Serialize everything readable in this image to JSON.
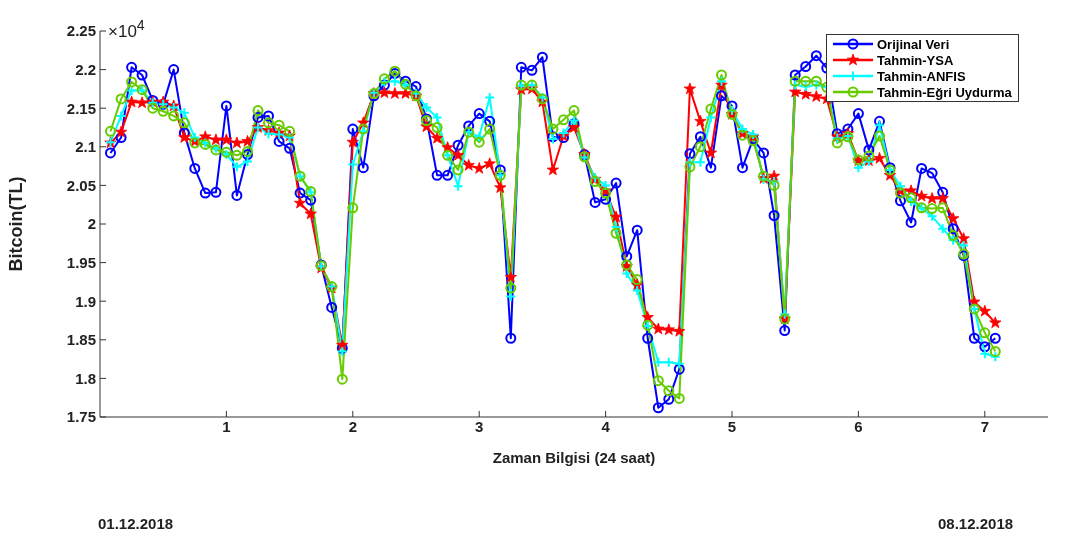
{
  "chart_data": {
    "type": "line",
    "xlabel": "Zaman Bilgisi (24 saat)",
    "ylabel": "Bitcoin(TL)",
    "annotations": [
      "×10$^{4}$",
      "01.12.2018",
      "08.12.2018"
    ],
    "x": [
      0.083,
      0.167,
      0.25,
      0.333,
      0.417,
      0.5,
      0.583,
      0.667,
      0.75,
      0.833,
      0.917,
      1,
      1.083,
      1.167,
      1.25,
      1.333,
      1.417,
      1.5,
      1.583,
      1.667,
      1.75,
      1.833,
      1.917,
      2,
      2.083,
      2.167,
      2.25,
      2.333,
      2.417,
      2.5,
      2.583,
      2.667,
      2.75,
      2.833,
      2.917,
      3,
      3.083,
      3.167,
      3.25,
      3.333,
      3.417,
      3.5,
      3.583,
      3.667,
      3.75,
      3.833,
      3.917,
      4,
      4.083,
      4.167,
      4.25,
      4.333,
      4.417,
      4.5,
      4.583,
      4.667,
      4.75,
      4.833,
      4.917,
      5,
      5.083,
      5.167,
      5.25,
      5.333,
      5.417,
      5.5,
      5.583,
      5.667,
      5.75,
      5.833,
      5.917,
      6,
      6.083,
      6.167,
      6.25,
      6.333,
      6.417,
      6.5,
      6.583,
      6.667,
      6.75,
      6.833,
      6.917,
      7,
      7.083
    ],
    "series": [
      {
        "name": "Orijinal Veri",
        "color": "#0000ff",
        "marker": "circle",
        "values": [
          2.092,
          2.112,
          2.203,
          2.193,
          2.16,
          2.155,
          2.2,
          2.118,
          2.072,
          2.04,
          2.041,
          2.153,
          2.037,
          2.09,
          2.138,
          2.14,
          2.107,
          2.098,
          2.04,
          2.031,
          1.947,
          1.892,
          1.839,
          2.123,
          2.073,
          2.166,
          2.18,
          2.195,
          2.185,
          2.178,
          2.136,
          2.063,
          2.063,
          2.102,
          2.127,
          2.143,
          2.133,
          2.07,
          1.852,
          2.203,
          2.199,
          2.216,
          2.113,
          2.112,
          2.13,
          2.09,
          2.028,
          2.032,
          2.053,
          1.958,
          1.992,
          1.852,
          1.762,
          1.773,
          1.812,
          2.091,
          2.113,
          2.073,
          2.166,
          2.153,
          2.073,
          2.11,
          2.092,
          2.011,
          1.862,
          2.193,
          2.204,
          2.218,
          2.202,
          2.117,
          2.123,
          2.143,
          2.096,
          2.133,
          2.073,
          2.03,
          2.002,
          2.072,
          2.066,
          2.041,
          1.994,
          1.959,
          1.852,
          1.841,
          1.852
        ]
      },
      {
        "name": "Tahmin-YSA",
        "color": "#ff0000",
        "marker": "star",
        "values": [
          2.105,
          2.119,
          2.158,
          2.157,
          2.158,
          2.158,
          2.153,
          2.112,
          2.107,
          2.113,
          2.109,
          2.109,
          2.105,
          2.107,
          2.125,
          2.121,
          2.118,
          2.114,
          2.027,
          2.013,
          1.943,
          1.917,
          1.843,
          2.106,
          2.131,
          2.169,
          2.17,
          2.169,
          2.169,
          2.166,
          2.126,
          2.111,
          2.099,
          2.089,
          2.076,
          2.072,
          2.078,
          2.047,
          1.931,
          2.174,
          2.175,
          2.158,
          2.07,
          2.114,
          2.125,
          2.09,
          2.058,
          2.043,
          2.009,
          1.945,
          1.921,
          1.879,
          1.864,
          1.863,
          1.861,
          2.175,
          2.133,
          2.092,
          2.18,
          2.142,
          2.117,
          2.113,
          2.059,
          2.062,
          1.877,
          2.171,
          2.168,
          2.165,
          2.162,
          2.113,
          2.117,
          2.082,
          2.082,
          2.085,
          2.063,
          2.043,
          2.043,
          2.036,
          2.033,
          2.033,
          2.007,
          1.981,
          1.899,
          1.887,
          1.872
        ]
      },
      {
        "name": "Tahmin-ANFIS",
        "color": "#00ffff",
        "marker": "cross",
        "values": [
          2.106,
          2.14,
          2.173,
          2.173,
          2.157,
          2.155,
          2.151,
          2.144,
          2.112,
          2.105,
          2.098,
          2.09,
          2.074,
          2.081,
          2.125,
          2.117,
          2.116,
          2.112,
          2.062,
          2.041,
          1.945,
          1.919,
          1.835,
          2.077,
          2.12,
          2.17,
          2.184,
          2.185,
          2.18,
          2.169,
          2.151,
          2.138,
          2.089,
          2.049,
          2.119,
          2.113,
          2.164,
          2.063,
          1.906,
          2.179,
          2.18,
          2.164,
          2.11,
          2.118,
          2.134,
          2.086,
          2.06,
          2.05,
          1.996,
          1.936,
          1.914,
          1.868,
          1.821,
          1.821,
          1.819,
          2.08,
          2.08,
          2.138,
          2.185,
          2.147,
          2.123,
          2.116,
          2.058,
          2.055,
          1.883,
          2.18,
          2.178,
          2.18,
          2.177,
          2.111,
          2.114,
          2.073,
          2.081,
          2.128,
          2.07,
          2.049,
          2.029,
          2.02,
          2.01,
          1.994,
          1.979,
          1.972,
          1.89,
          1.832,
          1.828
        ]
      },
      {
        "name": "Tahmin-Eğri Uydurma",
        "color": "#66cc00",
        "marker": "circle",
        "values": [
          2.12,
          2.162,
          2.184,
          2.174,
          2.15,
          2.146,
          2.14,
          2.131,
          2.105,
          2.103,
          2.096,
          2.093,
          2.089,
          2.094,
          2.147,
          2.131,
          2.128,
          2.12,
          2.062,
          2.042,
          1.946,
          1.919,
          1.799,
          2.021,
          2.123,
          2.169,
          2.188,
          2.198,
          2.181,
          2.166,
          2.134,
          2.125,
          2.089,
          2.07,
          2.119,
          2.106,
          2.123,
          2.063,
          1.917,
          2.18,
          2.18,
          2.162,
          2.123,
          2.135,
          2.147,
          2.087,
          2.055,
          2.04,
          1.988,
          1.947,
          1.928,
          1.869,
          1.797,
          1.784,
          1.774,
          2.074,
          2.1,
          2.149,
          2.193,
          2.142,
          2.115,
          2.108,
          2.062,
          2.05,
          1.877,
          2.185,
          2.185,
          2.185,
          2.177,
          2.105,
          2.113,
          2.083,
          2.088,
          2.114,
          2.07,
          2.04,
          2.034,
          2.021,
          2.02,
          2.021,
          1.985,
          1.961,
          1.89,
          1.859,
          1.835
        ]
      }
    ],
    "xlim": [
      0,
      7.5
    ],
    "xticks": [
      1,
      2,
      3,
      4,
      5,
      6,
      7
    ],
    "ylim": [
      1.75,
      2.25
    ],
    "yticks": [
      1.75,
      1.8,
      1.85,
      1.9,
      1.95,
      2,
      2.05,
      2.1,
      2.15,
      2.2,
      2.25
    ],
    "grid": false,
    "legend": "top right",
    "line_style": "solid"
  }
}
